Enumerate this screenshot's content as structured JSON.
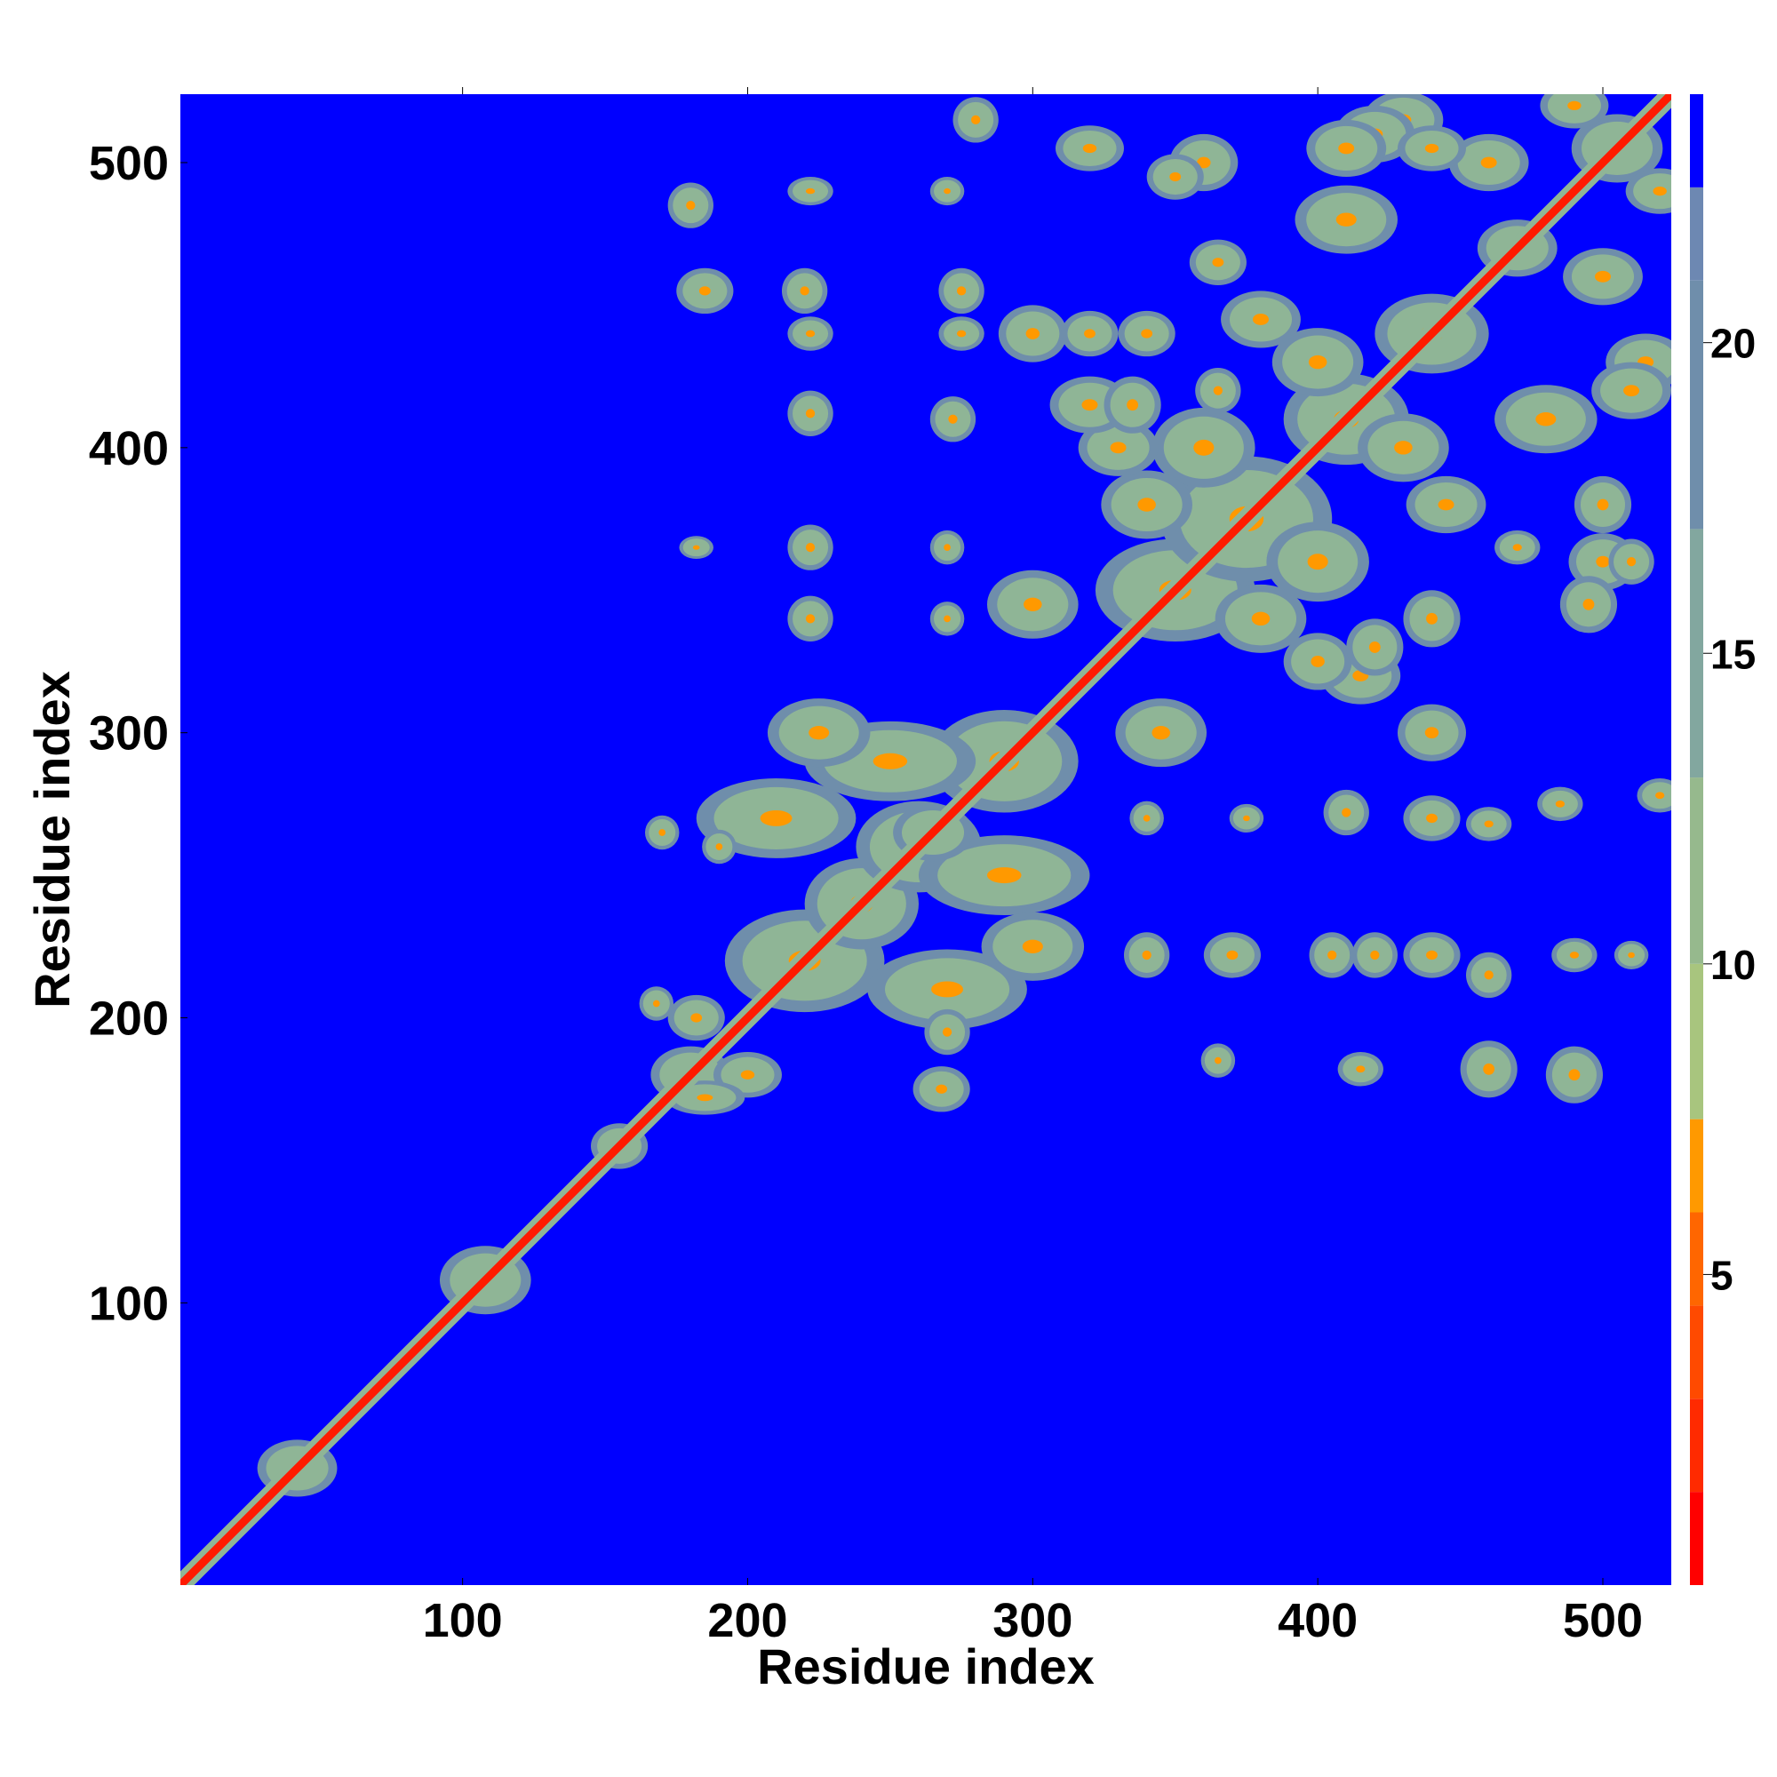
{
  "chart_data": {
    "type": "heatmap",
    "title": "",
    "xlabel": "Residue index",
    "ylabel": "Residue index",
    "xlim": [
      1,
      524
    ],
    "ylim": [
      1,
      524
    ],
    "x_ticks": [
      100,
      200,
      300,
      400,
      500
    ],
    "y_ticks": [
      100,
      200,
      300,
      400,
      500
    ],
    "colorbar": {
      "range": [
        0,
        24
      ],
      "ticks": [
        5,
        10,
        15,
        20
      ],
      "bands": [
        {
          "from": 0,
          "to": 1.5,
          "color": "#ff0000"
        },
        {
          "from": 1.5,
          "to": 3,
          "color": "#ff2a00"
        },
        {
          "from": 3,
          "to": 4.5,
          "color": "#ff4a00"
        },
        {
          "from": 4.5,
          "to": 6,
          "color": "#ff6600"
        },
        {
          "from": 6,
          "to": 7.5,
          "color": "#ff9900"
        },
        {
          "from": 7.5,
          "to": 10,
          "color": "#a8c57e"
        },
        {
          "from": 10,
          "to": 13,
          "color": "#96b98d"
        },
        {
          "from": 13,
          "to": 17,
          "color": "#82a79f"
        },
        {
          "from": 17,
          "to": 21,
          "color": "#6f8eab"
        },
        {
          "from": 21,
          "to": 22.5,
          "color": "#6d88b2"
        },
        {
          "from": 22.5,
          "to": 24,
          "color": "#0000ff"
        }
      ]
    },
    "background_color": "#0000ff",
    "diagonal_color": "#ff1a00",
    "contact_color": "#8fb596",
    "blobs": [
      [
        42,
        42,
        14,
        10
      ],
      [
        108,
        108,
        16,
        12
      ],
      [
        155,
        155,
        10,
        8
      ],
      [
        180,
        180,
        14,
        10
      ],
      [
        200,
        180,
        12,
        8
      ],
      [
        182,
        200,
        10,
        8
      ],
      [
        185,
        172,
        14,
        6
      ],
      [
        220,
        220,
        28,
        18
      ],
      [
        240,
        240,
        20,
        16
      ],
      [
        260,
        260,
        22,
        16
      ],
      [
        290,
        290,
        26,
        18
      ],
      [
        250,
        290,
        30,
        14
      ],
      [
        290,
        250,
        30,
        14
      ],
      [
        270,
        210,
        28,
        14
      ],
      [
        210,
        270,
        28,
        14
      ],
      [
        225,
        300,
        18,
        12
      ],
      [
        300,
        225,
        18,
        12
      ],
      [
        265,
        265,
        14,
        10
      ],
      [
        350,
        350,
        28,
        18
      ],
      [
        375,
        375,
        30,
        22
      ],
      [
        410,
        410,
        22,
        16
      ],
      [
        440,
        440,
        20,
        14
      ],
      [
        470,
        470,
        14,
        10
      ],
      [
        505,
        505,
        16,
        12
      ],
      [
        360,
        400,
        18,
        14
      ],
      [
        400,
        360,
        18,
        14
      ],
      [
        340,
        380,
        16,
        12
      ],
      [
        380,
        340,
        16,
        12
      ],
      [
        400,
        430,
        16,
        12
      ],
      [
        430,
        400,
        16,
        12
      ],
      [
        300,
        345,
        16,
        12
      ],
      [
        345,
        300,
        16,
        12
      ],
      [
        330,
        400,
        14,
        10
      ],
      [
        480,
        410,
        18,
        12
      ],
      [
        410,
        480,
        18,
        12
      ],
      [
        500,
        460,
        14,
        10
      ],
      [
        460,
        500,
        14,
        10
      ],
      [
        415,
        320,
        14,
        10
      ],
      [
        320,
        415,
        14,
        10
      ],
      [
        440,
        300,
        12,
        10
      ],
      [
        300,
        440,
        12,
        10
      ],
      [
        500,
        360,
        12,
        10
      ],
      [
        360,
        500,
        12,
        10
      ],
      [
        515,
        430,
        14,
        10
      ],
      [
        430,
        515,
        14,
        10
      ],
      [
        510,
        420,
        14,
        10
      ],
      [
        420,
        510,
        14,
        10
      ],
      [
        490,
        520,
        12,
        8
      ],
      [
        520,
        490,
        12,
        8
      ],
      [
        380,
        445,
        14,
        10
      ],
      [
        445,
        380,
        14,
        10
      ],
      [
        365,
        465,
        10,
        8
      ],
      [
        180,
        485,
        8,
        8
      ],
      [
        185,
        455,
        10,
        8
      ],
      [
        220,
        455,
        8,
        8
      ],
      [
        222,
        440,
        8,
        6
      ],
      [
        222,
        412,
        8,
        8
      ],
      [
        275,
        455,
        8,
        8
      ],
      [
        275,
        440,
        8,
        6
      ],
      [
        272,
        410,
        8,
        8
      ],
      [
        222,
        365,
        8,
        8
      ],
      [
        222,
        340,
        8,
        8
      ],
      [
        270,
        340,
        6,
        6
      ],
      [
        270,
        365,
        6,
        6
      ],
      [
        182,
        365,
        6,
        4
      ],
      [
        222,
        490,
        8,
        5
      ],
      [
        270,
        490,
        6,
        5
      ],
      [
        410,
        272,
        8,
        8
      ],
      [
        440,
        270,
        10,
        8
      ],
      [
        460,
        268,
        8,
        6
      ],
      [
        340,
        270,
        6,
        6
      ],
      [
        485,
        275,
        8,
        6
      ],
      [
        520,
        278,
        8,
        6
      ],
      [
        375,
        270,
        6,
        5
      ],
      [
        340,
        222,
        8,
        8
      ],
      [
        370,
        222,
        10,
        8
      ],
      [
        405,
        222,
        8,
        8
      ],
      [
        420,
        222,
        8,
        8
      ],
      [
        440,
        222,
        10,
        8
      ],
      [
        460,
        215,
        8,
        8
      ],
      [
        490,
        222,
        8,
        6
      ],
      [
        510,
        222,
        6,
        5
      ],
      [
        460,
        182,
        10,
        10
      ],
      [
        490,
        180,
        10,
        10
      ],
      [
        415,
        182,
        8,
        6
      ],
      [
        365,
        185,
        6,
        6
      ],
      [
        268,
        175,
        10,
        8
      ],
      [
        270,
        195,
        8,
        8
      ],
      [
        168,
        205,
        6,
        6
      ],
      [
        170,
        265,
        6,
        6
      ],
      [
        190,
        260,
        6,
        6
      ],
      [
        410,
        505,
        14,
        10
      ],
      [
        440,
        505,
        12,
        8
      ],
      [
        320,
        505,
        12,
        8
      ],
      [
        350,
        495,
        10,
        8
      ],
      [
        280,
        515,
        8,
        8
      ],
      [
        335,
        415,
        10,
        10
      ],
      [
        340,
        440,
        10,
        8
      ],
      [
        365,
        420,
        8,
        8
      ],
      [
        320,
        440,
        10,
        8
      ],
      [
        400,
        325,
        12,
        10
      ],
      [
        420,
        330,
        10,
        10
      ],
      [
        440,
        340,
        10,
        10
      ],
      [
        470,
        365,
        8,
        6
      ],
      [
        495,
        345,
        10,
        10
      ],
      [
        500,
        380,
        10,
        10
      ],
      [
        510,
        360,
        8,
        8
      ]
    ]
  }
}
